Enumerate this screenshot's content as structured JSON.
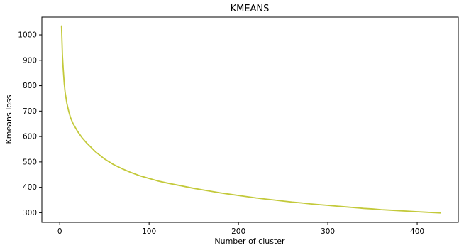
{
  "chart_data": {
    "type": "line",
    "title": "KMEANS",
    "xlabel": "Number of cluster",
    "ylabel": "Kmeans loss",
    "xlim": [
      -20,
      446
    ],
    "ylim": [
      262,
      1070
    ],
    "xticks": [
      0,
      100,
      200,
      300,
      400
    ],
    "yticks": [
      300,
      400,
      500,
      600,
      700,
      800,
      900,
      1000
    ],
    "grid": false,
    "colors": {
      "line": "#c3c93a",
      "axis": "#000000"
    },
    "series": [
      {
        "x": [
          2,
          3,
          4,
          5,
          6,
          8,
          10,
          12,
          15,
          20,
          25,
          30,
          40,
          50,
          60,
          70,
          80,
          90,
          100,
          110,
          120,
          130,
          140,
          150,
          160,
          170,
          180,
          190,
          200,
          210,
          220,
          230,
          240,
          250,
          260,
          270,
          280,
          290,
          300,
          310,
          320,
          330,
          340,
          350,
          360,
          370,
          380,
          390,
          400,
          410,
          420,
          426
        ],
        "y": [
          1035,
          920,
          860,
          810,
          775,
          730,
          700,
          675,
          650,
          620,
          595,
          575,
          540,
          512,
          490,
          473,
          458,
          445,
          435,
          425,
          417,
          410,
          403,
          396,
          390,
          384,
          378,
          373,
          368,
          363,
          358,
          354,
          350,
          346,
          342,
          339,
          335,
          332,
          329,
          326,
          323,
          320,
          317,
          315,
          312,
          310,
          308,
          306,
          304,
          302,
          300,
          299
        ]
      }
    ]
  }
}
